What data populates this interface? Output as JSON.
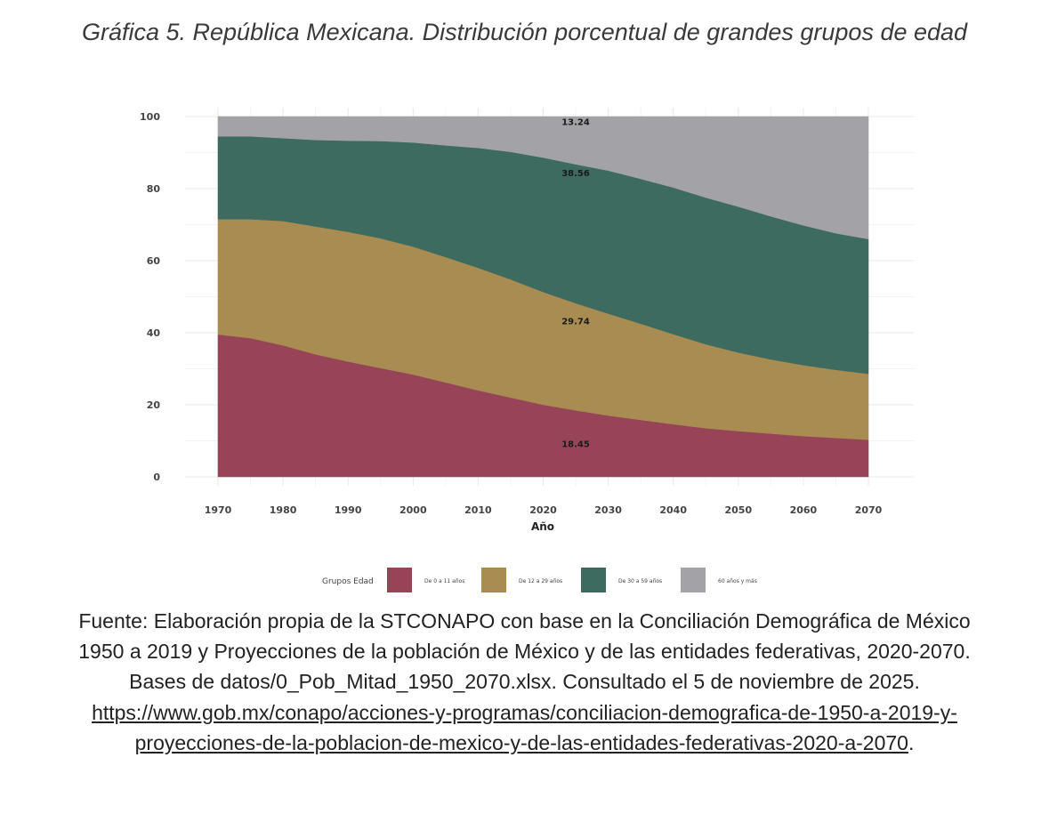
{
  "title": "Gráfica 5. República Mexicana. Distribución porcentual de grandes grupos de edad",
  "source": {
    "text": "Fuente: Elaboración propia de la STCONAPO con base en la Conciliación Demográfica de México 1950 a 2019 y Proyecciones de la población de México y de las entidades federativas, 2020-2070. Bases de datos/0_Pob_Mitad_1950_2070.xlsx. Consultado el 5 de noviembre de 2025.",
    "url": "https://www.gob.mx/conapo/acciones-y-programas/conciliacion-demografica-de-1950-a-2019-y-proyecciones-de-la-poblacion-de-mexico-y-de-las-entidades-federativas-2020-a-2070",
    "trailing": "."
  },
  "chart_data": {
    "type": "area",
    "stacked": true,
    "title": "",
    "xlabel": "Año",
    "ylabel": "",
    "xlim": [
      1965,
      2072
    ],
    "ylim": [
      0,
      100
    ],
    "x_ticks": [
      1970,
      1980,
      1990,
      2000,
      2010,
      2020,
      2030,
      2040,
      2050,
      2060,
      2070
    ],
    "y_ticks": [
      0,
      20,
      40,
      60,
      80,
      100
    ],
    "grid": true,
    "legend_title": "Grupos Edad",
    "legend_position": "bottom",
    "x": [
      1970,
      1975,
      1980,
      1985,
      1990,
      1995,
      2000,
      2005,
      2010,
      2015,
      2020,
      2025,
      2030,
      2035,
      2040,
      2045,
      2050,
      2055,
      2060,
      2065,
      2070
    ],
    "series": [
      {
        "name": "De 0 a 11 años",
        "color": "#984458",
        "values": [
          39.5,
          38.5,
          36.5,
          34.0,
          32.0,
          30.2,
          28.4,
          26.2,
          24.0,
          22.0,
          20.0,
          18.45,
          17.0,
          15.8,
          14.6,
          13.5,
          12.7,
          12.0,
          11.3,
          10.8,
          10.3
        ]
      },
      {
        "name": "De 12 a 29 años",
        "color": "#a88c51",
        "values": [
          32.0,
          33.0,
          34.5,
          35.5,
          36.0,
          36.0,
          35.5,
          34.8,
          34.0,
          32.8,
          31.3,
          29.74,
          28.3,
          26.7,
          25.0,
          23.3,
          21.8,
          20.6,
          19.7,
          18.9,
          18.3
        ]
      },
      {
        "name": "De 30 a 59 años",
        "color": "#3e6b5f",
        "values": [
          23.0,
          23.0,
          23.0,
          24.0,
          25.3,
          27.0,
          28.9,
          31.0,
          33.3,
          35.4,
          37.3,
          38.56,
          39.7,
          40.2,
          40.7,
          40.7,
          40.5,
          39.7,
          38.8,
          37.9,
          37.4
        ]
      },
      {
        "name": "60 años y más",
        "color": "#a3a3a7",
        "values": [
          5.5,
          5.5,
          6.0,
          6.5,
          6.7,
          6.8,
          7.2,
          8.0,
          8.7,
          9.8,
          11.4,
          13.24,
          15.0,
          17.3,
          19.7,
          22.5,
          25.0,
          27.7,
          30.2,
          32.4,
          34.0
        ]
      }
    ],
    "annotations": [
      {
        "x": 2025,
        "y": 9.2,
        "text": "18.45"
      },
      {
        "x": 2025,
        "y": 43.3,
        "text": "29.74"
      },
      {
        "x": 2025,
        "y": 84.5,
        "text": "38.56"
      },
      {
        "x": 2025,
        "y": 98.6,
        "text": "13.24"
      }
    ]
  }
}
